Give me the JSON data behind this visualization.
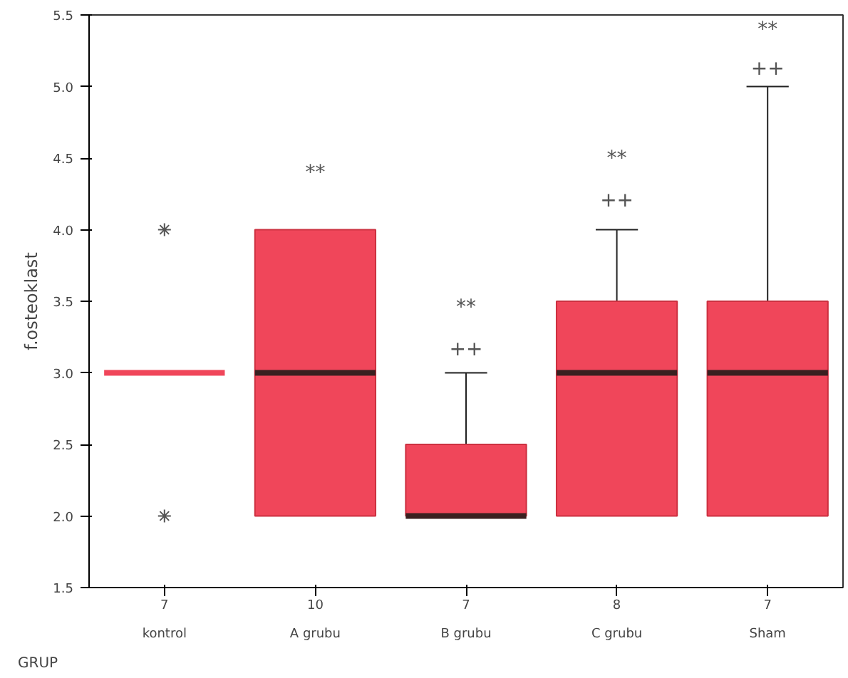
{
  "chart_data": {
    "type": "box",
    "xlabel": "GRUP",
    "ylabel": "f.osteoklast",
    "categories": [
      "kontrol",
      "A grubu",
      "B grubu",
      "C grubu",
      "Sham"
    ],
    "series": [
      {
        "color": "#f0465a",
        "boxes": [
          {
            "low": 3,
            "q1": 3,
            "median": 3,
            "q3": 3,
            "high": 3,
            "outliers": [
              4,
              2
            ]
          },
          {
            "low": 2,
            "q1": 2,
            "median": 3,
            "q3": 4,
            "high": 4
          },
          {
            "low": 2,
            "q1": 2,
            "median": 2,
            "q3": 2.5,
            "high": 3
          },
          {
            "low": 2,
            "q1": 2,
            "median": 3,
            "q3": 3.5,
            "high": 4
          },
          {
            "low": 2,
            "q1": 2,
            "median": 3,
            "q3": 3.5,
            "high": 5
          }
        ]
      }
    ],
    "ylim": [
      1.5,
      5.5
    ],
    "yticks": [
      {
        "value": 1.5,
        "label": "1.5"
      },
      {
        "value": 2,
        "label": "2.0"
      },
      {
        "value": 2.5,
        "label": "2.5"
      },
      {
        "value": 3,
        "label": "3.0"
      },
      {
        "value": 3.5,
        "label": "3.5"
      },
      {
        "value": 4,
        "label": "4.0"
      },
      {
        "value": 4.5,
        "label": "4.5"
      },
      {
        "value": 5,
        "label": "5.0"
      },
      {
        "value": 5.5,
        "label": "5.5"
      }
    ],
    "grid": false,
    "annotations": [
      "7",
      "10",
      "7",
      "8",
      "7",
      "**",
      "++",
      "**",
      "++",
      "**",
      "++",
      "**"
    ]
  }
}
